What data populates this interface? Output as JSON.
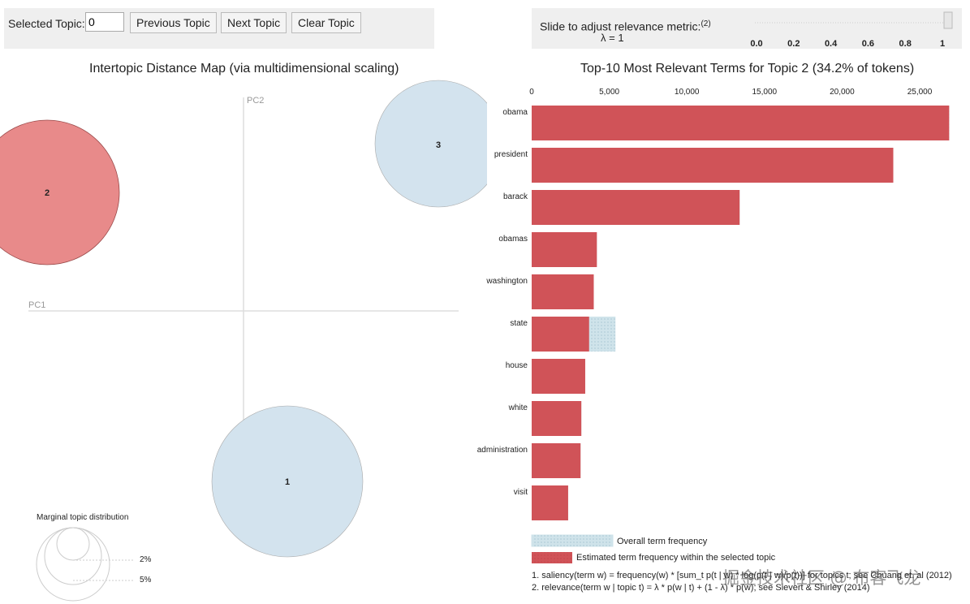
{
  "controls": {
    "selected_topic_label": "Selected Topic:",
    "selected_topic_value": "0",
    "previous_label": "Previous Topic",
    "next_label": "Next Topic",
    "clear_label": "Clear Topic"
  },
  "slider": {
    "label": "Slide to adjust relevance metric:",
    "footnote_ref": "(2)",
    "lambda_text": "λ = 1",
    "ticks": [
      "0.0",
      "0.2",
      "0.4",
      "0.6",
      "0.8",
      "1"
    ],
    "value": 1
  },
  "map": {
    "title": "Intertopic Distance Map (via multidimensional scaling)",
    "pc1_label": "PC1",
    "pc2_label": "PC2",
    "topics": [
      {
        "id": "1",
        "label": "1"
      },
      {
        "id": "2",
        "label": "2",
        "selected": true
      },
      {
        "id": "3",
        "label": "3"
      }
    ],
    "marginal": {
      "title": "Marginal topic distribution",
      "small_label": "2%",
      "large_label": "5%"
    }
  },
  "chart_data": {
    "type": "bar",
    "title": "Top-10 Most Relevant Terms for Topic 2 (34.2% of tokens)",
    "orientation": "horizontal",
    "categories": [
      "obama",
      "president",
      "barack",
      "obamas",
      "washington",
      "state",
      "house",
      "white",
      "administration",
      "visit"
    ],
    "series": [
      {
        "name": "Overall term frequency",
        "values": [
          26900,
          23300,
          13400,
          4200,
          4000,
          5400,
          3450,
          3200,
          3150,
          2350
        ]
      },
      {
        "name": "Estimated term frequency within the selected topic",
        "values": [
          26900,
          23300,
          13400,
          4200,
          4000,
          3700,
          3450,
          3200,
          3150,
          2350
        ]
      }
    ],
    "xticks": [
      0,
      5000,
      10000,
      15000,
      20000,
      25000
    ],
    "xtick_labels": [
      "0",
      "5,000",
      "10,000",
      "15,000",
      "20,000",
      "25,000"
    ],
    "xlim": [
      0,
      27000
    ]
  },
  "legend": {
    "overall": "Overall term frequency",
    "estimated": "Estimated term frequency within the selected topic"
  },
  "footnotes": {
    "line1": "1. saliency(term w) = frequency(w) * [sum_t p(t | w) * log(p(t | w)/p(t))] for topics t; see Chuang et. al (2012)",
    "line2": "2. relevance(term w | topic t) = λ * p(w | t) + (1 - λ) * p(w); see Sievert & Shirley (2014)"
  },
  "watermark": "掘金技术社区 @ 布客飞龙",
  "colors": {
    "topic_selected": "#e88a8a",
    "topic_default": "#d3e3ee",
    "bar_red": "#d05358",
    "bar_blue": "#cfe3ea",
    "panel_bg": "#efefef"
  }
}
